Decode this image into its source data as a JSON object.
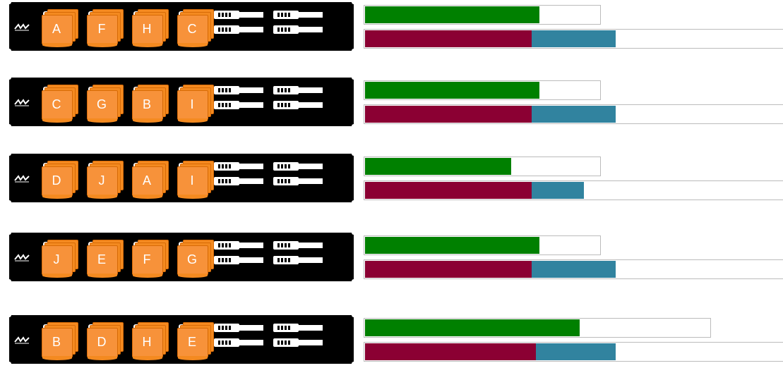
{
  "colors": {
    "rack": "#000000",
    "drive": "#f48a20",
    "usage_fill": "#008000",
    "capacity_used": "#8b0033",
    "capacity_free": "#31839f"
  },
  "icons": [
    "brand-logo-icon"
  ],
  "servers": [
    {
      "drives": [
        "A",
        "F",
        "H",
        "C"
      ],
      "usage": 0.74,
      "usage_box": 0.3,
      "cap_used": 0.398,
      "cap_free": 0.201
    },
    {
      "drives": [
        "C",
        "G",
        "B",
        "I"
      ],
      "usage": 0.74,
      "usage_box": 0.3,
      "cap_used": 0.398,
      "cap_free": 0.201
    },
    {
      "drives": [
        "D",
        "J",
        "A",
        "I"
      ],
      "usage": 0.62,
      "usage_box": 0.3,
      "cap_used": 0.398,
      "cap_free": 0.125
    },
    {
      "drives": [
        "J",
        "E",
        "F",
        "G"
      ],
      "usage": 0.74,
      "usage_box": 0.3,
      "cap_used": 0.398,
      "cap_free": 0.201
    },
    {
      "drives": [
        "B",
        "D",
        "H",
        "E"
      ],
      "usage": 0.62,
      "usage_box": 0.44,
      "cap_used": 0.408,
      "cap_free": 0.191
    }
  ]
}
